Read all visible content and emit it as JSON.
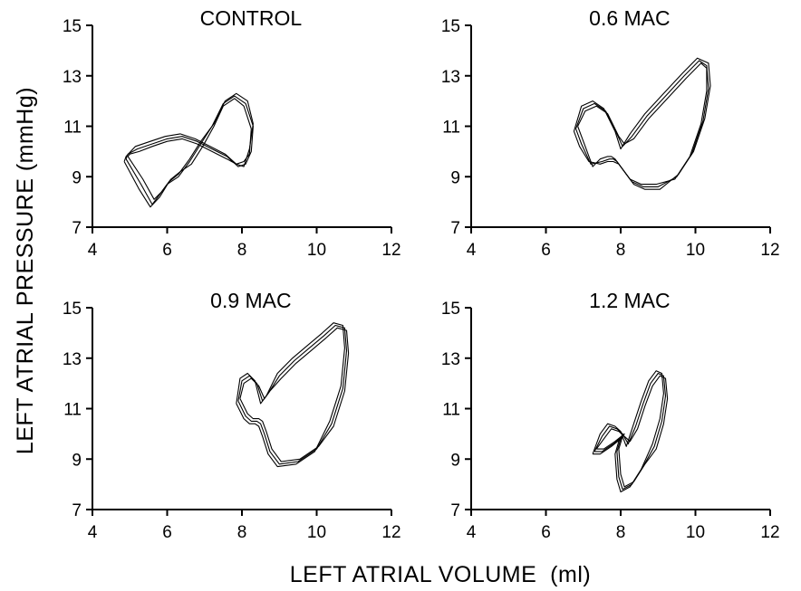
{
  "figure": {
    "ylabel": "LEFT ATRIAL PRESSURE (mmHg)",
    "xlabel": "LEFT ATRIAL VOLUME  (ml)"
  },
  "chart_data": [
    {
      "type": "line",
      "title": "CONTROL",
      "xlim": [
        4,
        12
      ],
      "ylim": [
        7,
        15
      ],
      "xticks": [
        4,
        6,
        8,
        10,
        12
      ],
      "yticks": [
        7,
        9,
        11,
        13,
        15
      ],
      "series": [
        {
          "x": [
            4.9,
            5.3,
            5.6,
            5.8,
            6.0,
            6.3,
            6.6,
            6.9,
            7.2,
            7.5,
            7.8,
            8.1,
            8.3,
            8.25,
            8.1,
            7.9,
            7.6,
            7.2,
            6.8,
            6.4,
            6.0,
            5.6,
            5.2,
            4.95,
            4.9
          ],
          "y": [
            9.7,
            8.7,
            7.9,
            8.3,
            8.7,
            9.0,
            9.6,
            10.3,
            11.0,
            11.9,
            12.2,
            11.9,
            11.0,
            10.0,
            9.5,
            9.4,
            9.8,
            10.1,
            10.4,
            10.6,
            10.5,
            10.3,
            10.1,
            9.9,
            9.7
          ]
        },
        {
          "x": [
            4.85,
            5.25,
            5.55,
            5.8,
            6.05,
            6.3,
            6.6,
            6.9,
            7.25,
            7.55,
            7.85,
            8.15,
            8.3,
            8.2,
            8.05,
            7.85,
            7.55,
            7.15,
            6.75,
            6.35,
            5.95,
            5.55,
            5.15,
            4.9,
            4.85
          ],
          "y": [
            9.6,
            8.5,
            7.8,
            8.2,
            8.8,
            9.1,
            9.7,
            10.4,
            11.1,
            12.0,
            12.3,
            12.0,
            11.1,
            10.1,
            9.4,
            9.5,
            9.9,
            10.2,
            10.5,
            10.7,
            10.6,
            10.4,
            10.2,
            9.8,
            9.6
          ]
        },
        {
          "x": [
            4.95,
            5.35,
            5.65,
            5.85,
            6.1,
            6.35,
            6.65,
            6.95,
            7.25,
            7.5,
            7.8,
            8.05,
            8.25,
            8.2,
            8.05,
            7.85,
            7.6,
            7.2,
            6.8,
            6.4,
            6.0,
            5.6,
            5.25,
            5.0,
            4.95
          ],
          "y": [
            9.8,
            8.9,
            8.1,
            8.4,
            8.9,
            9.2,
            9.5,
            10.2,
            11.0,
            11.8,
            12.1,
            11.8,
            10.9,
            9.9,
            9.6,
            9.5,
            9.7,
            10.0,
            10.3,
            10.5,
            10.4,
            10.2,
            10.0,
            9.9,
            9.8
          ]
        }
      ]
    },
    {
      "type": "line",
      "title": "0.6 MAC",
      "xlim": [
        4,
        12
      ],
      "ylim": [
        7,
        15
      ],
      "xticks": [
        4,
        6,
        8,
        10,
        12
      ],
      "yticks": [
        7,
        9,
        11,
        13,
        15
      ],
      "series": [
        {
          "x": [
            6.8,
            7.0,
            7.3,
            7.6,
            7.9,
            8.05,
            8.3,
            8.7,
            9.2,
            9.7,
            10.1,
            10.3,
            10.35,
            10.2,
            9.9,
            9.5,
            9.0,
            8.6,
            8.3,
            8.05,
            7.9,
            7.8,
            7.7,
            7.5,
            7.2,
            6.95,
            6.8
          ],
          "y": [
            10.9,
            11.7,
            11.9,
            11.6,
            10.7,
            10.2,
            10.6,
            11.4,
            12.2,
            13.0,
            13.6,
            13.4,
            12.5,
            11.2,
            9.9,
            9.0,
            8.6,
            8.6,
            8.8,
            9.3,
            9.6,
            9.7,
            9.7,
            9.6,
            9.5,
            10.3,
            10.9
          ]
        },
        {
          "x": [
            6.75,
            6.95,
            7.25,
            7.55,
            7.85,
            8.0,
            8.25,
            8.65,
            9.15,
            9.65,
            10.05,
            10.35,
            10.4,
            10.25,
            9.95,
            9.55,
            9.05,
            8.65,
            8.35,
            8.1,
            7.95,
            7.8,
            7.65,
            7.45,
            7.15,
            6.9,
            6.75
          ],
          "y": [
            10.8,
            11.8,
            12.0,
            11.7,
            10.8,
            10.1,
            10.7,
            11.5,
            12.3,
            13.1,
            13.7,
            13.5,
            12.6,
            11.3,
            10.0,
            9.1,
            8.5,
            8.5,
            8.7,
            9.2,
            9.5,
            9.6,
            9.6,
            9.5,
            9.6,
            10.2,
            10.8
          ]
        },
        {
          "x": [
            6.85,
            7.05,
            7.35,
            7.65,
            7.95,
            8.1,
            8.35,
            8.75,
            9.25,
            9.75,
            10.15,
            10.3,
            10.3,
            10.15,
            9.85,
            9.45,
            8.95,
            8.55,
            8.25,
            8.0,
            7.85,
            7.75,
            7.65,
            7.45,
            7.25,
            7.0,
            6.85
          ],
          "y": [
            11.0,
            11.6,
            11.8,
            11.5,
            10.6,
            10.3,
            10.5,
            11.3,
            12.1,
            12.9,
            13.5,
            13.3,
            12.4,
            11.1,
            9.8,
            8.9,
            8.7,
            8.7,
            8.9,
            9.4,
            9.7,
            9.8,
            9.8,
            9.7,
            9.4,
            10.4,
            11.0
          ]
        }
      ]
    },
    {
      "type": "line",
      "title": "0.9 MAC",
      "xlim": [
        4,
        12
      ],
      "ylim": [
        7,
        15
      ],
      "xticks": [
        4,
        6,
        8,
        10,
        12
      ],
      "yticks": [
        7,
        9,
        11,
        13,
        15
      ],
      "series": [
        {
          "x": [
            7.9,
            8.0,
            8.2,
            8.4,
            8.55,
            8.7,
            9.0,
            9.4,
            9.8,
            10.2,
            10.5,
            10.75,
            10.8,
            10.7,
            10.4,
            10.0,
            9.5,
            9.0,
            8.75,
            8.6,
            8.5,
            8.4,
            8.25,
            8.1,
            7.9
          ],
          "y": [
            11.3,
            12.1,
            12.3,
            12.0,
            11.3,
            11.6,
            12.3,
            12.9,
            13.4,
            13.9,
            14.3,
            14.2,
            13.3,
            11.8,
            10.4,
            9.4,
            8.9,
            8.8,
            9.3,
            10.0,
            10.4,
            10.5,
            10.5,
            10.7,
            11.3
          ]
        },
        {
          "x": [
            7.85,
            7.95,
            8.15,
            8.35,
            8.5,
            8.65,
            8.95,
            9.35,
            9.75,
            10.15,
            10.45,
            10.7,
            10.75,
            10.65,
            10.35,
            9.95,
            9.45,
            8.95,
            8.7,
            8.55,
            8.45,
            8.35,
            8.2,
            8.05,
            7.85
          ],
          "y": [
            11.2,
            12.2,
            12.4,
            12.1,
            11.2,
            11.5,
            12.4,
            13.0,
            13.5,
            14.0,
            14.4,
            14.3,
            13.4,
            11.9,
            10.5,
            9.3,
            8.8,
            8.7,
            9.2,
            9.9,
            10.3,
            10.4,
            10.4,
            10.6,
            11.2
          ]
        },
        {
          "x": [
            7.95,
            8.05,
            8.25,
            8.45,
            8.6,
            8.75,
            9.05,
            9.45,
            9.85,
            10.25,
            10.55,
            10.8,
            10.85,
            10.75,
            10.45,
            10.05,
            9.55,
            9.05,
            8.8,
            8.65,
            8.55,
            8.45,
            8.3,
            8.15,
            7.95
          ],
          "y": [
            11.4,
            12.0,
            12.2,
            11.9,
            11.4,
            11.7,
            12.2,
            12.8,
            13.3,
            13.8,
            14.2,
            14.1,
            13.2,
            11.7,
            10.3,
            9.5,
            9.0,
            8.9,
            9.4,
            10.1,
            10.5,
            10.6,
            10.6,
            10.8,
            11.4
          ]
        }
      ]
    },
    {
      "type": "line",
      "title": "1.2 MAC",
      "xlim": [
        4,
        12
      ],
      "ylim": [
        7,
        15
      ],
      "xticks": [
        4,
        6,
        8,
        10,
        12
      ],
      "yticks": [
        7,
        9,
        11,
        13,
        15
      ],
      "series": [
        {
          "x": [
            7.3,
            7.5,
            7.7,
            7.9,
            8.05,
            8.2,
            8.4,
            8.6,
            8.8,
            9.0,
            9.15,
            9.2,
            9.1,
            8.9,
            8.6,
            8.3,
            8.05,
            7.95,
            7.9,
            8.0,
            8.05,
            7.8,
            7.5,
            7.3
          ],
          "y": [
            9.3,
            9.9,
            10.3,
            10.2,
            10.0,
            9.6,
            10.3,
            11.2,
            12.0,
            12.4,
            12.3,
            11.5,
            10.5,
            9.5,
            8.7,
            8.0,
            7.8,
            8.3,
            9.3,
            9.8,
            9.9,
            9.6,
            9.3,
            9.3
          ]
        },
        {
          "x": [
            7.25,
            7.45,
            7.65,
            7.85,
            8.0,
            8.15,
            8.35,
            8.55,
            8.75,
            8.95,
            9.1,
            9.15,
            9.05,
            8.85,
            8.55,
            8.25,
            8.0,
            7.9,
            7.85,
            7.95,
            8.0,
            7.75,
            7.45,
            7.25
          ],
          "y": [
            9.2,
            10.0,
            10.4,
            10.3,
            10.1,
            9.5,
            10.4,
            11.3,
            12.1,
            12.5,
            12.4,
            11.6,
            10.6,
            9.6,
            8.6,
            7.9,
            7.7,
            8.2,
            9.2,
            9.7,
            9.8,
            9.5,
            9.2,
            9.2
          ]
        },
        {
          "x": [
            7.35,
            7.55,
            7.75,
            7.95,
            8.1,
            8.25,
            8.45,
            8.65,
            8.85,
            9.05,
            9.2,
            9.25,
            9.15,
            8.95,
            8.65,
            8.35,
            8.1,
            8.0,
            7.95,
            8.05,
            8.1,
            7.85,
            7.55,
            7.35
          ],
          "y": [
            9.4,
            9.8,
            10.2,
            10.1,
            9.9,
            9.7,
            10.2,
            11.1,
            11.9,
            12.3,
            12.2,
            11.4,
            10.4,
            9.4,
            8.8,
            8.1,
            7.9,
            8.4,
            9.4,
            9.9,
            10.0,
            9.7,
            9.4,
            9.4
          ]
        }
      ]
    }
  ]
}
